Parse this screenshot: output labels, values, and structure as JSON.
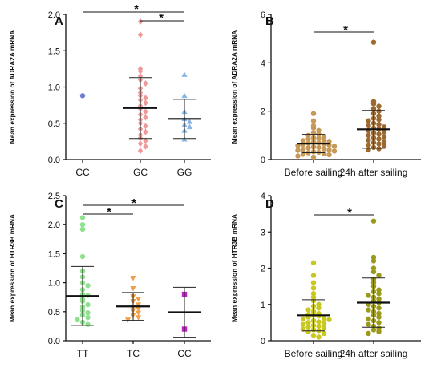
{
  "figure": {
    "panels": [
      {
        "id": "A",
        "letter": "A",
        "ylabel": "Mean expression of ADRA2A mRNA"
      },
      {
        "id": "B",
        "letter": "B",
        "ylabel": "Mean expression of ADRA2A mRNA"
      },
      {
        "id": "C",
        "letter": "C",
        "ylabel": "Mean expression of HTR3B mRNA"
      },
      {
        "id": "D",
        "letter": "D",
        "ylabel": "Mean expression of HTR3B mRNA"
      }
    ]
  },
  "chart_data": [
    {
      "id": "A",
      "type": "scatter",
      "title": "",
      "xlabel": "",
      "ylabel": "Mean expression of ADRA2A mRNA",
      "ylim": [
        0,
        2.0
      ],
      "yticks": [
        0.0,
        0.5,
        1.0,
        1.5,
        2.0
      ],
      "tick_decimals": 1,
      "categories": [
        "CC",
        "GC",
        "GG"
      ],
      "groups": [
        {
          "label": "CC",
          "color": "#6f7fd8",
          "marker": "circle",
          "values": [
            0.88
          ],
          "mean": null,
          "sd": null
        },
        {
          "label": "GC",
          "color": "#ef9a9a",
          "marker": "diamond",
          "values": [
            1.9,
            1.72,
            1.25,
            1.22,
            1.15,
            1.1,
            1.05,
            0.98,
            0.92,
            0.88,
            0.85,
            0.82,
            0.78,
            0.74,
            0.7,
            0.66,
            0.62,
            0.58,
            0.55,
            0.5,
            0.46,
            0.42,
            0.38,
            0.34,
            0.3,
            0.26,
            0.22,
            0.18,
            0.12
          ],
          "mean": 0.71,
          "sd": 0.42
        },
        {
          "label": "GG",
          "color": "#8ab6e6",
          "marker": "triangle",
          "values": [
            1.17,
            0.88,
            0.66,
            0.56,
            0.52,
            0.48,
            0.45,
            0.4,
            0.28
          ],
          "mean": 0.56,
          "sd": 0.27
        }
      ],
      "significance": [
        {
          "from": "CC",
          "to": "GG",
          "label": "*"
        },
        {
          "from": "GC",
          "to": "GG",
          "label": "*"
        }
      ]
    },
    {
      "id": "B",
      "type": "scatter",
      "title": "",
      "xlabel": "",
      "ylabel": "Mean expression of ADRA2A mRNA",
      "ylim": [
        0,
        6
      ],
      "yticks": [
        0,
        2,
        4,
        6
      ],
      "tick_decimals": 0,
      "categories": [
        "Before sailing",
        "24h after sailing"
      ],
      "groups": [
        {
          "label": "Before sailing",
          "color": "#c89a5a",
          "marker": "circle",
          "values": [
            1.9,
            1.6,
            1.4,
            1.3,
            1.2,
            1.1,
            1.05,
            1.0,
            0.95,
            0.9,
            0.88,
            0.85,
            0.8,
            0.78,
            0.75,
            0.72,
            0.7,
            0.68,
            0.65,
            0.62,
            0.6,
            0.58,
            0.55,
            0.52,
            0.5,
            0.48,
            0.45,
            0.42,
            0.4,
            0.38,
            0.35,
            0.32,
            0.3,
            0.28,
            0.25,
            0.22,
            0.2,
            0.15,
            0.1
          ],
          "mean": 0.66,
          "sd": 0.38
        },
        {
          "label": "24h after sailing",
          "color": "#9c6a30",
          "marker": "circle",
          "values": [
            4.85,
            2.4,
            2.3,
            2.2,
            2.1,
            2.0,
            1.9,
            1.8,
            1.7,
            1.65,
            1.6,
            1.5,
            1.45,
            1.4,
            1.35,
            1.3,
            1.25,
            1.2,
            1.15,
            1.1,
            1.05,
            1.0,
            0.95,
            0.9,
            0.85,
            0.8,
            0.75,
            0.7,
            0.65,
            0.6,
            0.55,
            0.5,
            0.45,
            0.4
          ],
          "mean": 1.25,
          "sd": 0.78
        }
      ],
      "significance": [
        {
          "from": "Before sailing",
          "to": "24h after sailing",
          "label": "*"
        }
      ]
    },
    {
      "id": "C",
      "type": "scatter",
      "title": "",
      "xlabel": "",
      "ylabel": "Mean expression of HTR3B mRNA",
      "ylim": [
        0,
        2.5
      ],
      "yticks": [
        0.0,
        0.5,
        1.0,
        1.5,
        2.0,
        2.5
      ],
      "tick_decimals": 1,
      "categories": [
        "TT",
        "TC",
        "CC"
      ],
      "groups": [
        {
          "label": "TT",
          "color": "#8fe08f",
          "marker": "circle",
          "values": [
            2.12,
            2.0,
            1.92,
            1.45,
            1.2,
            1.1,
            1.0,
            0.95,
            0.88,
            0.8,
            0.78,
            0.72,
            0.68,
            0.62,
            0.58,
            0.52,
            0.48,
            0.44,
            0.4,
            0.36,
            0.32,
            0.28
          ],
          "mean": 0.77,
          "sd": 0.51
        },
        {
          "label": "TC",
          "color": "#f0a04b",
          "marker": "triangle-down",
          "values": [
            1.08,
            0.9,
            0.76,
            0.72,
            0.68,
            0.62,
            0.58,
            0.55,
            0.52,
            0.48,
            0.44,
            0.4,
            0.36
          ],
          "mean": 0.59,
          "sd": 0.24
        },
        {
          "label": "CC",
          "color": "#c020c0",
          "marker": "square",
          "values": [
            0.8,
            0.2
          ],
          "mean": 0.49,
          "sd": 0.43
        }
      ],
      "significance": [
        {
          "from": "TT",
          "to": "TC",
          "label": "*"
        },
        {
          "from": "TT",
          "to": "CC",
          "label": "*"
        }
      ]
    },
    {
      "id": "D",
      "type": "scatter",
      "title": "",
      "xlabel": "",
      "ylabel": "Mean expression of HTR3B mRNA",
      "ylim": [
        0,
        4
      ],
      "yticks": [
        0,
        1,
        2,
        3,
        4
      ],
      "tick_decimals": 0,
      "categories": [
        "Before sailing",
        "24h after sailing"
      ],
      "groups": [
        {
          "label": "Before sailing",
          "color": "#c8c820",
          "marker": "circle",
          "values": [
            2.15,
            1.8,
            1.6,
            1.45,
            1.3,
            1.2,
            1.1,
            1.0,
            0.95,
            0.9,
            0.85,
            0.8,
            0.75,
            0.72,
            0.7,
            0.68,
            0.65,
            0.62,
            0.6,
            0.58,
            0.55,
            0.52,
            0.5,
            0.48,
            0.45,
            0.42,
            0.4,
            0.38,
            0.35,
            0.32,
            0.3,
            0.28,
            0.25,
            0.2,
            0.15,
            0.1
          ],
          "mean": 0.7,
          "sd": 0.43
        },
        {
          "label": "24h after sailing",
          "color": "#9a9a18",
          "marker": "circle",
          "values": [
            3.3,
            2.3,
            2.2,
            2.0,
            1.9,
            1.8,
            1.7,
            1.6,
            1.5,
            1.4,
            1.35,
            1.3,
            1.25,
            1.2,
            1.15,
            1.1,
            1.05,
            1.0,
            0.95,
            0.9,
            0.85,
            0.8,
            0.75,
            0.7,
            0.65,
            0.6,
            0.55,
            0.5,
            0.45,
            0.4,
            0.35,
            0.3,
            0.25,
            0.2
          ],
          "mean": 1.05,
          "sd": 0.68
        }
      ],
      "significance": [
        {
          "from": "Before sailing",
          "to": "24h after sailing",
          "label": "*"
        }
      ]
    }
  ]
}
